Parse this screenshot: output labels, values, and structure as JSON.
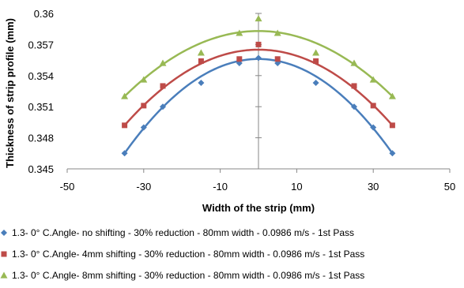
{
  "chart_data": {
    "type": "scatter",
    "xlabel": "Width of the strip (mm)",
    "ylabel": "Thickness of strip profile (mm)",
    "xlim": [
      -50,
      50
    ],
    "ylim": [
      0.345,
      0.36
    ],
    "xticks": [
      "-50",
      "-30",
      "-10",
      "10",
      "30",
      "50"
    ],
    "yticks": [
      "0.345",
      "0.348",
      "0.351",
      "0.354",
      "0.357",
      "0.36"
    ],
    "grid": false,
    "legend_position": "bottom",
    "series": [
      {
        "name": "1.3- 0° C.Angle- no shifting - 30% reduction - 80mm width - 0.0986 m/s - 1st Pass",
        "color": "#4a7ebb",
        "marker": "diamond",
        "x": [
          -35,
          -30,
          -25,
          -15,
          -5,
          0,
          5,
          15,
          25,
          30,
          35
        ],
        "y": [
          0.3465,
          0.349,
          0.351,
          0.3533,
          0.3552,
          0.3557,
          0.3552,
          0.3533,
          0.351,
          0.349,
          0.3465
        ],
        "trend": {
          "peak_x": 0,
          "peak_y": 0.3556,
          "edge_y": 0.3465,
          "edge_x": 35
        }
      },
      {
        "name": "1.3- 0° C.Angle- 4mm shifting - 30% reduction - 80mm width - 0.0986 m/s - 1st Pass",
        "color": "#be4b48",
        "marker": "square",
        "x": [
          -35,
          -30,
          -25,
          -15,
          -5,
          0,
          5,
          15,
          25,
          30,
          35
        ],
        "y": [
          0.3492,
          0.3511,
          0.353,
          0.3554,
          0.3556,
          0.357,
          0.3556,
          0.3554,
          0.353,
          0.3511,
          0.3492
        ],
        "trend": {
          "peak_x": 0,
          "peak_y": 0.3565,
          "edge_y": 0.3492,
          "edge_x": 35
        }
      },
      {
        "name": "1.3- 0° C.Angle- 8mm shifting - 30% reduction - 80mm width - 0.0986 m/s - 1st Pass",
        "color": "#98b954",
        "marker": "triangle",
        "x": [
          -35,
          -30,
          -25,
          -15,
          -5,
          0,
          5,
          15,
          25,
          30,
          35
        ],
        "y": [
          0.352,
          0.3536,
          0.3552,
          0.3562,
          0.3581,
          0.3595,
          0.3581,
          0.3562,
          0.3552,
          0.3536,
          0.352
        ],
        "trend": {
          "peak_x": 0,
          "peak_y": 0.3583,
          "edge_y": 0.352,
          "edge_x": 35
        }
      }
    ]
  }
}
